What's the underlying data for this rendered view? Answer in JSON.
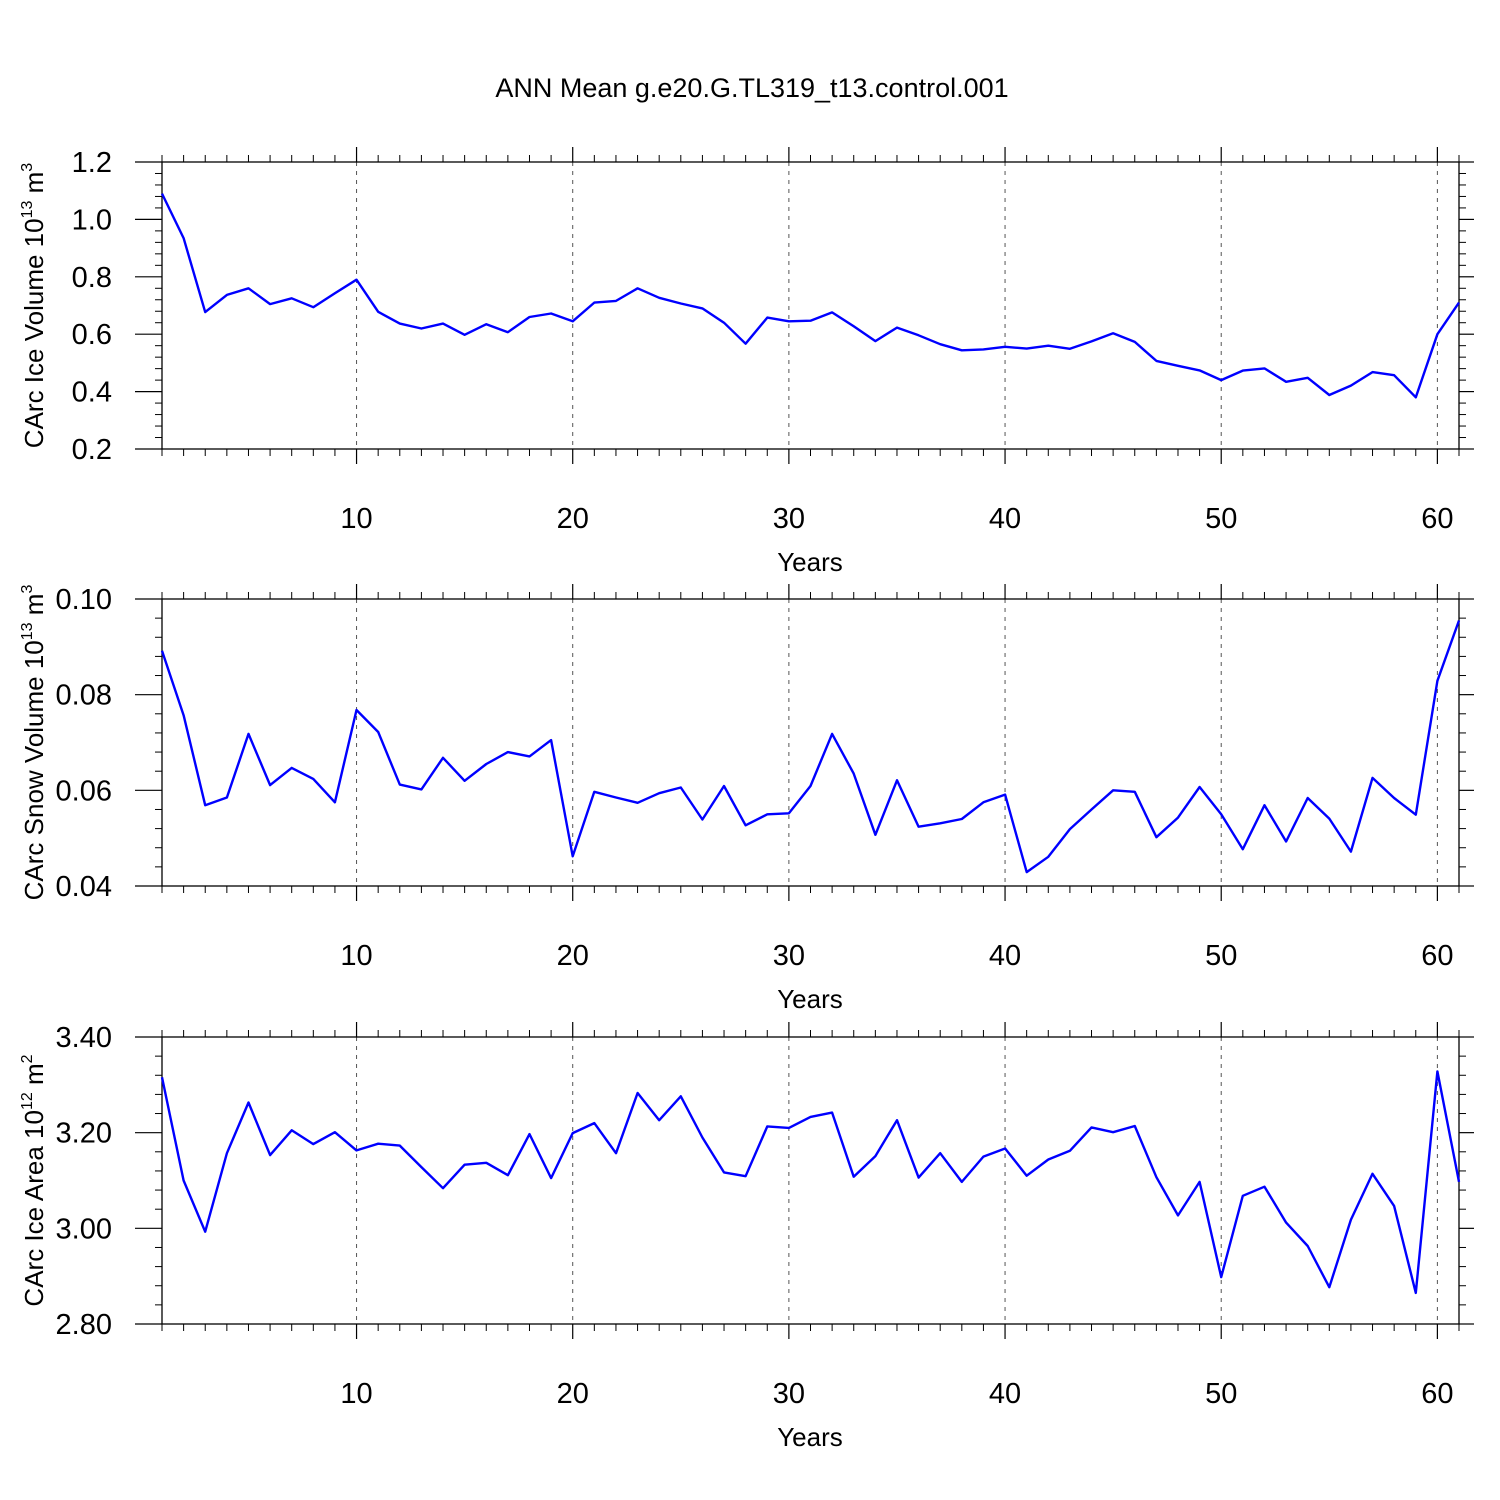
{
  "title": "ANN Mean g.e20.G.TL319_t13.control.001",
  "colors": {
    "series": "#0000ff",
    "axis": "#000000",
    "grid": "#555555",
    "background": "#ffffff"
  },
  "chart_data": [
    {
      "type": "line",
      "name": "ice-volume",
      "ylabel_main": "CArc Ice Volume 10",
      "ylabel_exp": "13",
      "ylabel_unit": " m",
      "ylabel_unit_exp": "3",
      "xlabel": "Years",
      "xlim": [
        1,
        61
      ],
      "ylim": [
        0.2,
        1.2
      ],
      "xticks": [
        10,
        20,
        30,
        40,
        50,
        60
      ],
      "xtick_labels": [
        "10",
        "20",
        "30",
        "40",
        "50",
        "60"
      ],
      "yticks": [
        0.2,
        0.4,
        0.6,
        0.8,
        1.0,
        1.2
      ],
      "ytick_labels": [
        "0.2",
        "0.4",
        "0.6",
        "0.8",
        "1.0",
        "1.2"
      ],
      "x": [
        1,
        2,
        3,
        4,
        5,
        6,
        7,
        8,
        9,
        10,
        11,
        12,
        13,
        14,
        15,
        16,
        17,
        18,
        19,
        20,
        21,
        22,
        23,
        24,
        25,
        26,
        27,
        28,
        29,
        30,
        31,
        32,
        33,
        34,
        35,
        36,
        37,
        38,
        39,
        40,
        41,
        42,
        43,
        44,
        45,
        46,
        47,
        48,
        49,
        50,
        51,
        52,
        53,
        54,
        55,
        56,
        57,
        58,
        59,
        60,
        61
      ],
      "values": [
        1.09,
        0.935,
        0.677,
        0.737,
        0.76,
        0.705,
        0.725,
        0.694,
        0.743,
        0.79,
        0.678,
        0.637,
        0.62,
        0.637,
        0.598,
        0.635,
        0.607,
        0.66,
        0.672,
        0.645,
        0.71,
        0.716,
        0.76,
        0.727,
        0.707,
        0.69,
        0.64,
        0.567,
        0.658,
        0.645,
        0.647,
        0.676,
        0.628,
        0.576,
        0.623,
        0.596,
        0.565,
        0.544,
        0.547,
        0.556,
        0.55,
        0.56,
        0.549,
        0.575,
        0.603,
        0.573,
        0.507,
        0.49,
        0.474,
        0.44,
        0.473,
        0.481,
        0.434,
        0.448,
        0.388,
        0.421,
        0.468,
        0.457,
        0.38,
        0.6,
        0.71
      ]
    },
    {
      "type": "line",
      "name": "snow-volume",
      "ylabel_main": "CArc Snow Volume 10",
      "ylabel_exp": "13",
      "ylabel_unit": " m",
      "ylabel_unit_exp": "3",
      "xlabel": "Years",
      "xlim": [
        1,
        61
      ],
      "ylim": [
        0.04,
        0.1
      ],
      "xticks": [
        10,
        20,
        30,
        40,
        50,
        60
      ],
      "xtick_labels": [
        "10",
        "20",
        "30",
        "40",
        "50",
        "60"
      ],
      "yticks": [
        0.04,
        0.06,
        0.08,
        0.1
      ],
      "ytick_labels": [
        "0.04",
        "0.06",
        "0.08",
        "0.10"
      ],
      "x": [
        1,
        2,
        3,
        4,
        5,
        6,
        7,
        8,
        9,
        10,
        11,
        12,
        13,
        14,
        15,
        16,
        17,
        18,
        19,
        20,
        21,
        22,
        23,
        24,
        25,
        26,
        27,
        28,
        29,
        30,
        31,
        32,
        33,
        34,
        35,
        36,
        37,
        38,
        39,
        40,
        41,
        42,
        43,
        44,
        45,
        46,
        47,
        48,
        49,
        50,
        51,
        52,
        53,
        54,
        55,
        56,
        57,
        58,
        59,
        60,
        61
      ],
      "values": [
        0.0892,
        0.0757,
        0.0569,
        0.0585,
        0.0718,
        0.0611,
        0.0647,
        0.0624,
        0.0575,
        0.0768,
        0.0722,
        0.0612,
        0.0602,
        0.0668,
        0.062,
        0.0655,
        0.068,
        0.0671,
        0.0705,
        0.0462,
        0.0597,
        0.0585,
        0.0574,
        0.0594,
        0.0606,
        0.0539,
        0.0609,
        0.0527,
        0.055,
        0.0552,
        0.0609,
        0.0718,
        0.0635,
        0.0507,
        0.0621,
        0.0524,
        0.0531,
        0.054,
        0.0575,
        0.0591,
        0.0429,
        0.0461,
        0.0519,
        0.056,
        0.06,
        0.0597,
        0.0502,
        0.0543,
        0.0607,
        0.055,
        0.0477,
        0.0569,
        0.0493,
        0.0584,
        0.0541,
        0.0472,
        0.0626,
        0.0584,
        0.0549,
        0.0829,
        0.0955
      ]
    },
    {
      "type": "line",
      "name": "ice-area",
      "ylabel_main": "CArc Ice Area 10",
      "ylabel_exp": "12",
      "ylabel_unit": " m",
      "ylabel_unit_exp": "2",
      "xlabel": "Years",
      "xlim": [
        1,
        61
      ],
      "ylim": [
        2.8,
        3.4
      ],
      "xticks": [
        10,
        20,
        30,
        40,
        50,
        60
      ],
      "xtick_labels": [
        "10",
        "20",
        "30",
        "40",
        "50",
        "60"
      ],
      "yticks": [
        2.8,
        3.0,
        3.2,
        3.4
      ],
      "ytick_labels": [
        "2.80",
        "3.00",
        "3.20",
        "3.40"
      ],
      "x": [
        1,
        2,
        3,
        4,
        5,
        6,
        7,
        8,
        9,
        10,
        11,
        12,
        13,
        14,
        15,
        16,
        17,
        18,
        19,
        20,
        21,
        22,
        23,
        24,
        25,
        26,
        27,
        28,
        29,
        30,
        31,
        32,
        33,
        34,
        35,
        36,
        37,
        38,
        39,
        40,
        41,
        42,
        43,
        44,
        45,
        46,
        47,
        48,
        49,
        50,
        51,
        52,
        53,
        54,
        55,
        56,
        57,
        58,
        59,
        60,
        61
      ],
      "values": [
        3.316,
        3.1,
        2.993,
        3.157,
        3.263,
        3.153,
        3.205,
        3.176,
        3.201,
        3.163,
        3.177,
        3.173,
        3.128,
        3.084,
        3.133,
        3.137,
        3.111,
        3.197,
        3.105,
        3.199,
        3.22,
        3.157,
        3.283,
        3.226,
        3.276,
        3.19,
        3.117,
        3.109,
        3.213,
        3.21,
        3.233,
        3.242,
        3.108,
        3.151,
        3.226,
        3.106,
        3.157,
        3.097,
        3.15,
        3.167,
        3.11,
        3.144,
        3.162,
        3.211,
        3.201,
        3.214,
        3.107,
        3.027,
        3.097,
        2.898,
        3.068,
        3.087,
        3.012,
        2.963,
        2.877,
        3.018,
        3.114,
        3.047,
        2.865,
        3.328,
        3.097
      ]
    }
  ]
}
